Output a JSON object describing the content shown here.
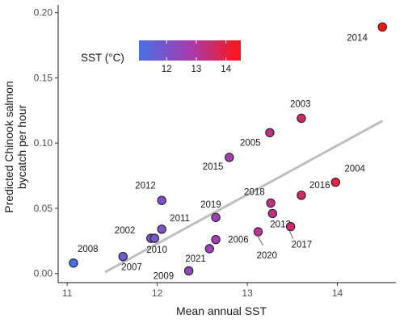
{
  "chart_data": {
    "type": "scatter",
    "xlabel": "Mean annual SST",
    "ylabel_lines": [
      "Predicted Chinook salmon",
      "bycatch per hour"
    ],
    "xlim": [
      10.9,
      14.65
    ],
    "ylim": [
      -0.007,
      0.206
    ],
    "x_ticks": [
      11,
      12,
      13,
      14
    ],
    "y_ticks": [
      0.0,
      0.05,
      0.1,
      0.15,
      0.2
    ],
    "x_tick_labels": [
      "11",
      "12",
      "13",
      "14"
    ],
    "y_tick_labels": [
      "0.00",
      "0.05",
      "0.10",
      "0.15",
      "0.20"
    ],
    "grid": false,
    "points": [
      {
        "label": "2008",
        "x": 11.07,
        "y": 0.008
      },
      {
        "label": "2007",
        "x": 11.62,
        "y": 0.013
      },
      {
        "label": "2002",
        "x": 11.93,
        "y": 0.027
      },
      {
        "label": "2010",
        "x": 11.97,
        "y": 0.027
      },
      {
        "label": "2011",
        "x": 12.05,
        "y": 0.034
      },
      {
        "label": "2012",
        "x": 12.05,
        "y": 0.056
      },
      {
        "label": "2009",
        "x": 12.35,
        "y": 0.002
      },
      {
        "label": "2021",
        "x": 12.58,
        "y": 0.019
      },
      {
        "label": "2006",
        "x": 12.65,
        "y": 0.026
      },
      {
        "label": "2019",
        "x": 12.65,
        "y": 0.043
      },
      {
        "label": "2015",
        "x": 12.8,
        "y": 0.089
      },
      {
        "label": "2020",
        "x": 13.12,
        "y": 0.032
      },
      {
        "label": "2005",
        "x": 13.25,
        "y": 0.108
      },
      {
        "label": "2018",
        "x": 13.26,
        "y": 0.054
      },
      {
        "label": "2013",
        "x": 13.28,
        "y": 0.046
      },
      {
        "label": "2017",
        "x": 13.48,
        "y": 0.036
      },
      {
        "label": "2003",
        "x": 13.6,
        "y": 0.119
      },
      {
        "label": "2016",
        "x": 13.6,
        "y": 0.06
      },
      {
        "label": "2004",
        "x": 13.98,
        "y": 0.07
      },
      {
        "label": "2014",
        "x": 14.5,
        "y": 0.189
      }
    ],
    "trend_line": {
      "x": [
        11.42,
        14.5
      ],
      "y": [
        0.001,
        0.117
      ],
      "color": "#bebebe"
    },
    "legend": {
      "title": "SST (°C)",
      "placement": "top-left",
      "range": [
        11.07,
        14.5
      ],
      "ticks": [
        12,
        13,
        14
      ],
      "tick_labels": [
        "12",
        "13",
        "14"
      ],
      "color_low": "#4a6fe3",
      "color_high": "#ff1414"
    }
  }
}
